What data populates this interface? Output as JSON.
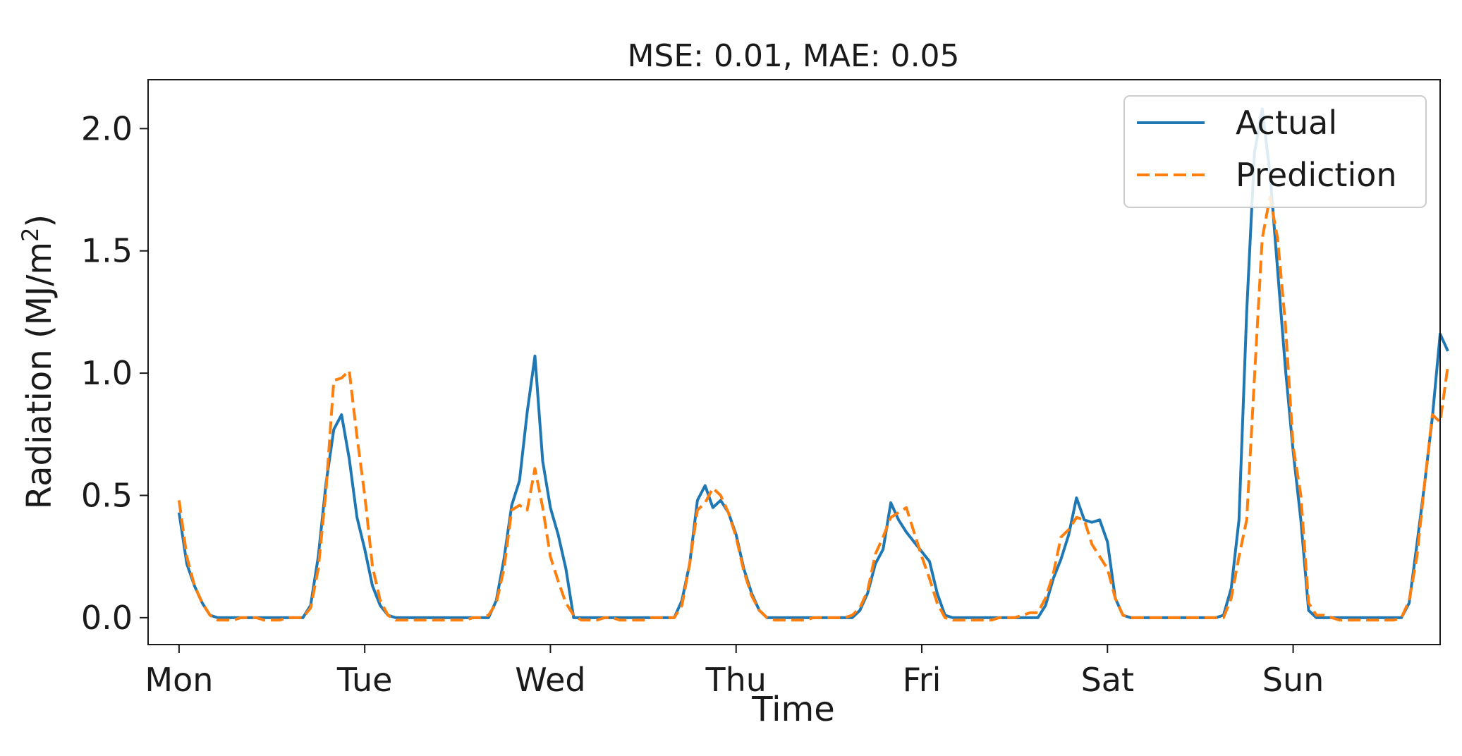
{
  "chart_data": {
    "type": "line",
    "title": "MSE: 0.01, MAE: 0.05",
    "xlabel": "Time",
    "ylabel_main": "Radiation (MJ/m",
    "ylabel_sup": "2",
    "ylabel_end": ")",
    "ylim": [
      -0.11,
      2.2
    ],
    "yticks": [
      0.0,
      0.5,
      1.0,
      1.5,
      2.0
    ],
    "ytick_labels": [
      "0.0",
      "0.5",
      "1.0",
      "1.5",
      "2.0"
    ],
    "xlim": [
      -4,
      163
    ],
    "xticks": [
      0,
      24,
      48,
      72,
      96,
      120,
      144
    ],
    "xtick_labels": [
      "Mon",
      "Tue",
      "Wed",
      "Thu",
      "Fri",
      "Sat",
      "Sun"
    ],
    "grid": false,
    "legend_position": "top-right",
    "series": [
      {
        "name": "Actual",
        "color": "#1f77b4",
        "dash": "solid",
        "points": [
          [
            0,
            0.43
          ],
          [
            1,
            0.22
          ],
          [
            2,
            0.13
          ],
          [
            3,
            0.06
          ],
          [
            4,
            0.01
          ],
          [
            5,
            0
          ],
          [
            6,
            0
          ],
          [
            7,
            0
          ],
          [
            8,
            0
          ],
          [
            9,
            0
          ],
          [
            10,
            0
          ],
          [
            11,
            0
          ],
          [
            12,
            0
          ],
          [
            13,
            0
          ],
          [
            14,
            0
          ],
          [
            15,
            0
          ],
          [
            16,
            0
          ],
          [
            17,
            0.05
          ],
          [
            18,
            0.25
          ],
          [
            19,
            0.55
          ],
          [
            20,
            0.77
          ],
          [
            21,
            0.83
          ],
          [
            22,
            0.65
          ],
          [
            23,
            0.41
          ],
          [
            24,
            0.28
          ],
          [
            25,
            0.13
          ],
          [
            26,
            0.05
          ],
          [
            27,
            0.01
          ],
          [
            28,
            0
          ],
          [
            29,
            0
          ],
          [
            30,
            0
          ],
          [
            31,
            0
          ],
          [
            32,
            0
          ],
          [
            33,
            0
          ],
          [
            34,
            0
          ],
          [
            35,
            0
          ],
          [
            36,
            0
          ],
          [
            37,
            0
          ],
          [
            38,
            0
          ],
          [
            39,
            0
          ],
          [
            40,
            0
          ],
          [
            41,
            0.07
          ],
          [
            42,
            0.24
          ],
          [
            43,
            0.46
          ],
          [
            44,
            0.56
          ],
          [
            45,
            0.84
          ],
          [
            46,
            1.07
          ],
          [
            47,
            0.64
          ],
          [
            48,
            0.45
          ],
          [
            49,
            0.34
          ],
          [
            50,
            0.2
          ],
          [
            51,
            0
          ],
          [
            52,
            0
          ],
          [
            53,
            0
          ],
          [
            54,
            0
          ],
          [
            55,
            0
          ],
          [
            56,
            0
          ],
          [
            57,
            0
          ],
          [
            58,
            0
          ],
          [
            59,
            0
          ],
          [
            60,
            0
          ],
          [
            61,
            0
          ],
          [
            62,
            0
          ],
          [
            63,
            0
          ],
          [
            64,
            0
          ],
          [
            65,
            0.07
          ],
          [
            66,
            0.22
          ],
          [
            67,
            0.48
          ],
          [
            68,
            0.54
          ],
          [
            69,
            0.45
          ],
          [
            70,
            0.48
          ],
          [
            71,
            0.43
          ],
          [
            72,
            0.34
          ],
          [
            73,
            0.2
          ],
          [
            74,
            0.1
          ],
          [
            75,
            0.03
          ],
          [
            76,
            0
          ],
          [
            77,
            0
          ],
          [
            78,
            0
          ],
          [
            79,
            0
          ],
          [
            80,
            0
          ],
          [
            81,
            0
          ],
          [
            82,
            0
          ],
          [
            83,
            0
          ],
          [
            84,
            0
          ],
          [
            85,
            0
          ],
          [
            86,
            0
          ],
          [
            87,
            0
          ],
          [
            88,
            0.03
          ],
          [
            89,
            0.1
          ],
          [
            90,
            0.22
          ],
          [
            91,
            0.28
          ],
          [
            92,
            0.47
          ],
          [
            93,
            0.4
          ],
          [
            94,
            0.35
          ],
          [
            95,
            0.31
          ],
          [
            96,
            0.27
          ],
          [
            97,
            0.23
          ],
          [
            98,
            0.1
          ],
          [
            99,
            0.01
          ],
          [
            100,
            0
          ],
          [
            101,
            0
          ],
          [
            102,
            0
          ],
          [
            103,
            0
          ],
          [
            104,
            0
          ],
          [
            105,
            0
          ],
          [
            106,
            0
          ],
          [
            107,
            0
          ],
          [
            108,
            0
          ],
          [
            109,
            0
          ],
          [
            110,
            0
          ],
          [
            111,
            0
          ],
          [
            112,
            0.05
          ],
          [
            113,
            0.16
          ],
          [
            114,
            0.24
          ],
          [
            115,
            0.34
          ],
          [
            116,
            0.49
          ],
          [
            117,
            0.4
          ],
          [
            118,
            0.39
          ],
          [
            119,
            0.4
          ],
          [
            120,
            0.31
          ],
          [
            121,
            0.08
          ],
          [
            122,
            0.01
          ],
          [
            123,
            0
          ],
          [
            124,
            0
          ],
          [
            125,
            0
          ],
          [
            126,
            0
          ],
          [
            127,
            0
          ],
          [
            128,
            0
          ],
          [
            129,
            0
          ],
          [
            130,
            0
          ],
          [
            131,
            0
          ],
          [
            132,
            0
          ],
          [
            133,
            0
          ],
          [
            134,
            0
          ],
          [
            135,
            0.01
          ],
          [
            136,
            0.12
          ],
          [
            137,
            0.4
          ],
          [
            138,
            1.25
          ],
          [
            139,
            1.9
          ],
          [
            140,
            2.08
          ],
          [
            141,
            1.82
          ],
          [
            142,
            1.42
          ],
          [
            143,
            1.02
          ],
          [
            144,
            0.68
          ],
          [
            145,
            0.4
          ],
          [
            146,
            0.03
          ],
          [
            147,
            0
          ],
          [
            148,
            0
          ],
          [
            149,
            0
          ],
          [
            150,
            0
          ],
          [
            151,
            0
          ],
          [
            152,
            0
          ],
          [
            153,
            0
          ],
          [
            154,
            0
          ],
          [
            155,
            0
          ],
          [
            156,
            0
          ],
          [
            157,
            0
          ],
          [
            158,
            0
          ],
          [
            159,
            0.06
          ],
          [
            160,
            0.3
          ],
          [
            161,
            0.55
          ],
          [
            162,
            0.82
          ],
          [
            163,
            1.16
          ],
          [
            164,
            1.09
          ]
        ]
      },
      {
        "name": "Prediction",
        "color": "#ff7f0e",
        "dash": "dashed",
        "points": [
          [
            0,
            0.48
          ],
          [
            1,
            0.25
          ],
          [
            2,
            0.13
          ],
          [
            3,
            0.06
          ],
          [
            4,
            0.01
          ],
          [
            5,
            -0.01
          ],
          [
            6,
            -0.01
          ],
          [
            7,
            -0.01
          ],
          [
            8,
            0
          ],
          [
            9,
            0
          ],
          [
            10,
            0
          ],
          [
            11,
            -0.01
          ],
          [
            12,
            -0.01
          ],
          [
            13,
            -0.01
          ],
          [
            14,
            0
          ],
          [
            15,
            0
          ],
          [
            16,
            0
          ],
          [
            17,
            0.04
          ],
          [
            18,
            0.2
          ],
          [
            19,
            0.52
          ],
          [
            20,
            0.97
          ],
          [
            21,
            0.98
          ],
          [
            22,
            1.01
          ],
          [
            23,
            0.74
          ],
          [
            24,
            0.5
          ],
          [
            25,
            0.21
          ],
          [
            26,
            0.07
          ],
          [
            27,
            0.01
          ],
          [
            28,
            -0.01
          ],
          [
            29,
            -0.01
          ],
          [
            30,
            -0.01
          ],
          [
            31,
            -0.01
          ],
          [
            32,
            -0.01
          ],
          [
            33,
            -0.01
          ],
          [
            34,
            -0.01
          ],
          [
            35,
            -0.01
          ],
          [
            36,
            -0.01
          ],
          [
            37,
            -0.01
          ],
          [
            38,
            0
          ],
          [
            39,
            0
          ],
          [
            40,
            0.01
          ],
          [
            41,
            0.06
          ],
          [
            42,
            0.2
          ],
          [
            43,
            0.44
          ],
          [
            44,
            0.46
          ],
          [
            45,
            0.44
          ],
          [
            46,
            0.61
          ],
          [
            47,
            0.45
          ],
          [
            48,
            0.25
          ],
          [
            49,
            0.15
          ],
          [
            50,
            0.06
          ],
          [
            51,
            0.01
          ],
          [
            52,
            -0.01
          ],
          [
            53,
            -0.01
          ],
          [
            54,
            -0.01
          ],
          [
            55,
            0
          ],
          [
            56,
            0
          ],
          [
            57,
            -0.01
          ],
          [
            58,
            -0.01
          ],
          [
            59,
            -0.01
          ],
          [
            60,
            -0.01
          ],
          [
            61,
            0
          ],
          [
            62,
            0
          ],
          [
            63,
            0
          ],
          [
            64,
            0
          ],
          [
            65,
            0.05
          ],
          [
            66,
            0.22
          ],
          [
            67,
            0.44
          ],
          [
            68,
            0.47
          ],
          [
            69,
            0.53
          ],
          [
            70,
            0.5
          ],
          [
            71,
            0.43
          ],
          [
            72,
            0.33
          ],
          [
            73,
            0.19
          ],
          [
            74,
            0.09
          ],
          [
            75,
            0.03
          ],
          [
            76,
            0
          ],
          [
            77,
            -0.01
          ],
          [
            78,
            -0.01
          ],
          [
            79,
            -0.01
          ],
          [
            80,
            -0.01
          ],
          [
            81,
            -0.01
          ],
          [
            82,
            0
          ],
          [
            83,
            0
          ],
          [
            84,
            0
          ],
          [
            85,
            0
          ],
          [
            86,
            0
          ],
          [
            87,
            0.01
          ],
          [
            88,
            0.04
          ],
          [
            89,
            0.11
          ],
          [
            90,
            0.26
          ],
          [
            91,
            0.33
          ],
          [
            92,
            0.41
          ],
          [
            93,
            0.43
          ],
          [
            94,
            0.45
          ],
          [
            95,
            0.35
          ],
          [
            96,
            0.25
          ],
          [
            97,
            0.16
          ],
          [
            98,
            0.06
          ],
          [
            99,
            0
          ],
          [
            100,
            -0.01
          ],
          [
            101,
            -0.01
          ],
          [
            102,
            -0.01
          ],
          [
            103,
            -0.01
          ],
          [
            104,
            -0.01
          ],
          [
            105,
            -0.01
          ],
          [
            106,
            0
          ],
          [
            107,
            0
          ],
          [
            108,
            0
          ],
          [
            109,
            0.01
          ],
          [
            110,
            0.02
          ],
          [
            111,
            0.02
          ],
          [
            112,
            0.08
          ],
          [
            113,
            0.18
          ],
          [
            114,
            0.33
          ],
          [
            115,
            0.36
          ],
          [
            116,
            0.41
          ],
          [
            117,
            0.4
          ],
          [
            118,
            0.3
          ],
          [
            119,
            0.25
          ],
          [
            120,
            0.2
          ],
          [
            121,
            0.08
          ],
          [
            122,
            0.01
          ],
          [
            123,
            0
          ],
          [
            124,
            0
          ],
          [
            125,
            0
          ],
          [
            126,
            0
          ],
          [
            127,
            0
          ],
          [
            128,
            0
          ],
          [
            129,
            0
          ],
          [
            130,
            0
          ],
          [
            131,
            0
          ],
          [
            132,
            0
          ],
          [
            133,
            0
          ],
          [
            134,
            0
          ],
          [
            135,
            0
          ],
          [
            136,
            0.08
          ],
          [
            137,
            0.25
          ],
          [
            138,
            0.4
          ],
          [
            139,
            0.98
          ],
          [
            140,
            1.55
          ],
          [
            141,
            1.72
          ],
          [
            142,
            1.55
          ],
          [
            143,
            1.2
          ],
          [
            144,
            0.7
          ],
          [
            145,
            0.5
          ],
          [
            146,
            0.06
          ],
          [
            147,
            0.01
          ],
          [
            148,
            0.01
          ],
          [
            149,
            0
          ],
          [
            150,
            -0.01
          ],
          [
            151,
            -0.01
          ],
          [
            152,
            -0.01
          ],
          [
            153,
            -0.01
          ],
          [
            154,
            -0.01
          ],
          [
            155,
            -0.01
          ],
          [
            156,
            -0.01
          ],
          [
            157,
            -0.01
          ],
          [
            158,
            0
          ],
          [
            159,
            0.07
          ],
          [
            160,
            0.25
          ],
          [
            161,
            0.55
          ],
          [
            162,
            0.83
          ],
          [
            163,
            0.8
          ],
          [
            164,
            1.03
          ]
        ]
      }
    ]
  }
}
